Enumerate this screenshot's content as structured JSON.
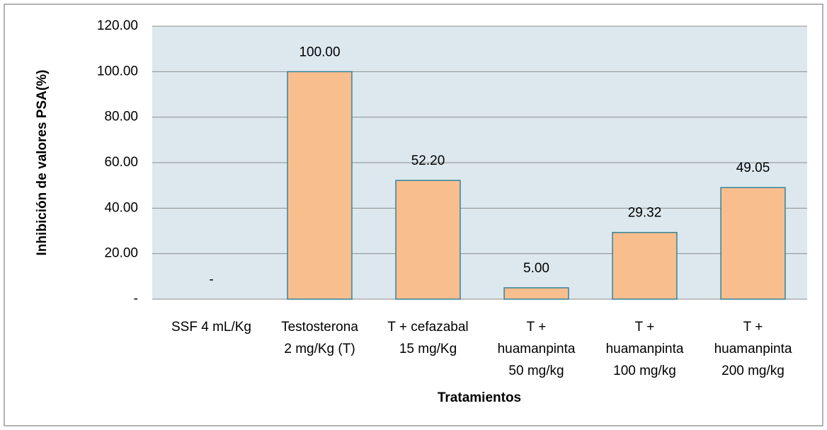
{
  "chart_data": {
    "type": "bar",
    "y_label": "Inhibición de valores PSA(%)",
    "x_label": "Tratamientos",
    "categories": [
      "SSF 4 mL/Kg",
      "Testosterona\n2 mg/Kg (T)",
      "T + cefazabal\n15 mg/Kg",
      "T +\nhuamanpinta\n50 mg/kg",
      "T +\nhuamanpinta\n100 mg/kg",
      "T +\nhuamanpinta\n200 mg/kg"
    ],
    "values": [
      0,
      100,
      52.2,
      5,
      29.32,
      49.05
    ],
    "value_labels": [
      "-",
      "100.00",
      "52.20",
      "5.00",
      "29.32",
      "49.05"
    ],
    "color": "#f9be8e",
    "edge_color": "#31849b",
    "plot_background": "#dde8ee",
    "ylim": [
      0,
      120
    ],
    "yticks": [
      {
        "value": 0,
        "label": "-"
      },
      {
        "value": 20,
        "label": "20.00"
      },
      {
        "value": 40,
        "label": "40.00"
      },
      {
        "value": 60,
        "label": "60.00"
      },
      {
        "value": 80,
        "label": "80.00"
      },
      {
        "value": 100,
        "label": "100.00"
      },
      {
        "value": 120,
        "label": "120.00"
      }
    ],
    "grid": true
  }
}
